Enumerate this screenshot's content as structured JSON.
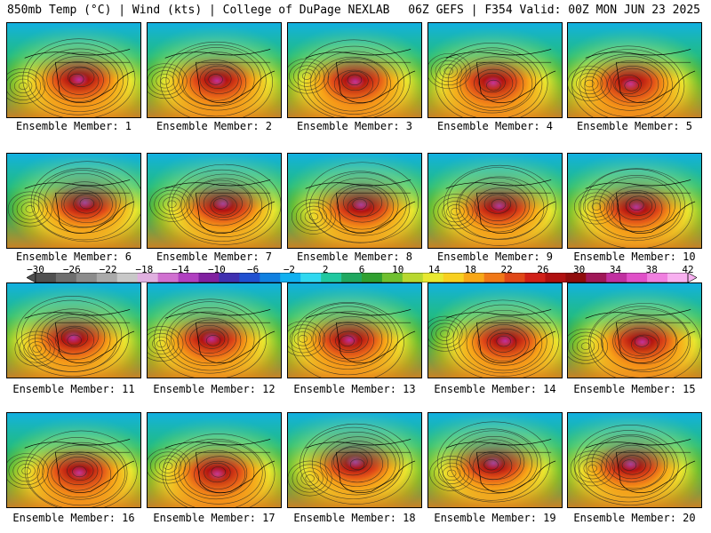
{
  "header": {
    "left_title": "850mb Temp (°C) | Wind (kts) | College of DuPage NEXLAB",
    "right_title": "06Z GEFS | F354 Valid: 00Z MON JUN 23 2025"
  },
  "members": [
    {
      "label": "Ensemble Member: 1"
    },
    {
      "label": "Ensemble Member: 2"
    },
    {
      "label": "Ensemble Member: 3"
    },
    {
      "label": "Ensemble Member: 4"
    },
    {
      "label": "Ensemble Member: 5"
    },
    {
      "label": "Ensemble Member: 6"
    },
    {
      "label": "Ensemble Member: 7"
    },
    {
      "label": "Ensemble Member: 8"
    },
    {
      "label": "Ensemble Member: 9"
    },
    {
      "label": "Ensemble Member: 10"
    },
    {
      "label": "Ensemble Member: 11"
    },
    {
      "label": "Ensemble Member: 12"
    },
    {
      "label": "Ensemble Member: 13"
    },
    {
      "label": "Ensemble Member: 14"
    },
    {
      "label": "Ensemble Member: 15"
    },
    {
      "label": "Ensemble Member: 16"
    },
    {
      "label": "Ensemble Member: 17"
    },
    {
      "label": "Ensemble Member: 18"
    },
    {
      "label": "Ensemble Member: 19"
    },
    {
      "label": "Ensemble Member: 20"
    }
  ],
  "colorbar": {
    "ticks": [
      "−30",
      "−26",
      "−22",
      "−18",
      "−14",
      "−10",
      "−6",
      "−2",
      "2",
      "6",
      "10",
      "14",
      "18",
      "22",
      "26",
      "30",
      "34",
      "38",
      "42"
    ],
    "colors": [
      "#505050",
      "#6e6e6e",
      "#8c8c8c",
      "#aaaaaa",
      "#c8c8c8",
      "#e0b0e0",
      "#d070d0",
      "#b040c0",
      "#8020a0",
      "#4030b0",
      "#2050d0",
      "#1080e0",
      "#10b0f0",
      "#30d8f0",
      "#20c8a0",
      "#20a860",
      "#30a030",
      "#70c030",
      "#b8d830",
      "#e8e830",
      "#f8d020",
      "#f8a818",
      "#f07818",
      "#e04818",
      "#d02018",
      "#b01010",
      "#900c0c",
      "#a01858",
      "#c030a0",
      "#e050c8",
      "#f080e0",
      "#f8b0f0"
    ]
  }
}
